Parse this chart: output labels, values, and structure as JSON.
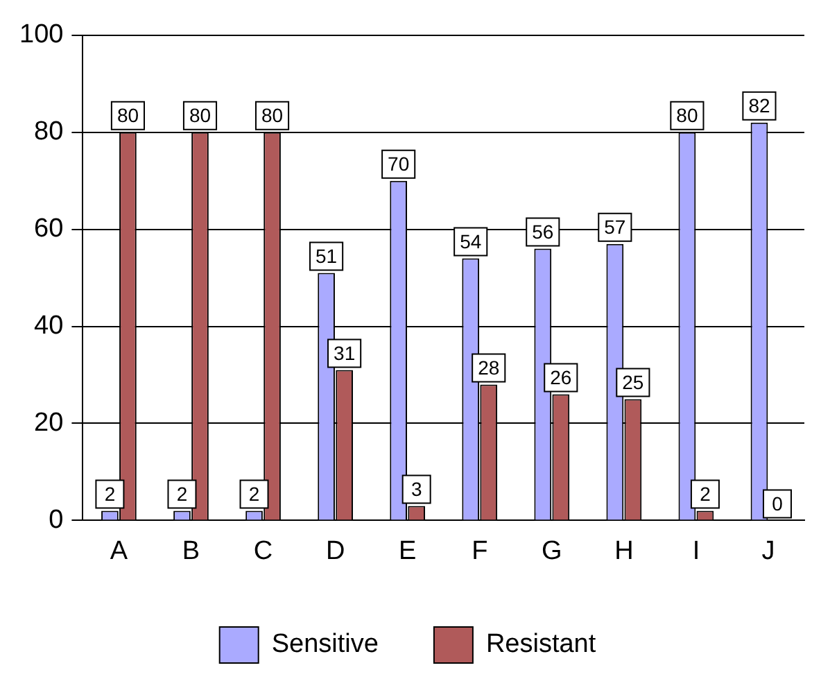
{
  "chart_data": {
    "type": "bar",
    "categories": [
      "A",
      "B",
      "C",
      "D",
      "E",
      "F",
      "G",
      "H",
      "I",
      "J"
    ],
    "series": [
      {
        "name": "Sensitive",
        "color": "#aaaaff",
        "values": [
          2,
          2,
          2,
          51,
          70,
          54,
          56,
          57,
          80,
          82
        ]
      },
      {
        "name": "Resistant",
        "color": "#b05a5a",
        "values": [
          80,
          80,
          80,
          31,
          3,
          28,
          26,
          25,
          2,
          0
        ]
      }
    ],
    "ylim": [
      0,
      100
    ],
    "yticks": [
      0,
      20,
      40,
      60,
      80,
      100
    ],
    "grid": "y",
    "legend": "bottom",
    "data_labels": true
  }
}
